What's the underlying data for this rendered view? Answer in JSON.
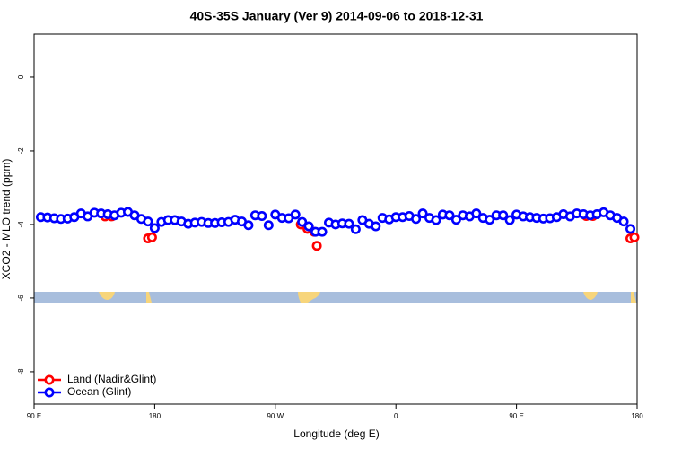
{
  "chart_data": {
    "type": "scatter",
    "title": "40S-35S January (Ver 9)   2014-09-06 to 2018-12-31",
    "x_label": "Longitude (deg E)",
    "y_label": "XCO2 - MLO trend (ppm)",
    "xlim": [
      90,
      540
    ],
    "xticks": [
      {
        "value": 90,
        "label": "90 E"
      },
      180,
      {
        "value": 270,
        "label": "90 W"
      },
      {
        "value": 360,
        "label": "0"
      },
      {
        "value": 450,
        "label": "90 E"
      },
      {
        "value": 540,
        "label": "180"
      }
    ],
    "ylim": [
      -8.88,
      1.17
    ],
    "yticks": [
      0,
      -2,
      -4,
      -6,
      -8
    ],
    "legend": "bottom-left",
    "series": [
      {
        "name": "Land (Nadir&Glint)",
        "color": "#ff0000",
        "x": [
          143,
          148,
          175,
          178,
          289,
          294,
          299,
          301,
          502,
          507,
          535,
          538
        ],
        "values": [
          -3.78,
          -3.78,
          -4.38,
          -4.35,
          -4.0,
          -4.12,
          -4.2,
          -4.58,
          -3.77,
          -3.77,
          -4.38,
          -4.35
        ]
      },
      {
        "name": "Ocean (Glint)",
        "color": "#0000ff",
        "x": [
          95,
          100,
          105,
          110,
          115,
          120,
          125,
          130,
          135,
          140,
          145,
          150,
          155,
          160,
          165,
          170,
          175,
          180,
          185,
          190,
          195,
          200,
          205,
          210,
          215,
          220,
          225,
          230,
          235,
          240,
          245,
          250,
          255,
          260,
          265,
          270,
          275,
          280,
          285,
          290,
          295,
          300,
          305,
          310,
          315,
          320,
          325,
          330,
          335,
          340,
          345,
          350,
          355,
          360,
          365,
          370,
          375,
          380,
          385,
          390,
          395,
          400,
          405,
          410,
          415,
          420,
          425,
          430,
          435,
          440,
          445,
          450,
          455,
          460,
          465,
          470,
          475,
          480,
          485,
          490,
          495,
          500,
          505,
          510,
          515,
          520,
          525,
          530,
          535
        ],
        "values": [
          -3.8,
          -3.81,
          -3.83,
          -3.85,
          -3.84,
          -3.8,
          -3.7,
          -3.78,
          -3.68,
          -3.7,
          -3.72,
          -3.75,
          -3.68,
          -3.66,
          -3.75,
          -3.85,
          -3.92,
          -4.1,
          -3.93,
          -3.88,
          -3.88,
          -3.92,
          -3.98,
          -3.95,
          -3.93,
          -3.96,
          -3.96,
          -3.94,
          -3.93,
          -3.87,
          -3.92,
          -4.02,
          -3.75,
          -3.77,
          -4.02,
          -3.73,
          -3.82,
          -3.83,
          -3.73,
          -3.93,
          -4.05,
          -4.2,
          -4.2,
          -3.95,
          -4.0,
          -3.97,
          -3.98,
          -4.13,
          -3.88,
          -3.98,
          -4.05,
          -3.82,
          -3.86,
          -3.8,
          -3.8,
          -3.77,
          -3.85,
          -3.7,
          -3.82,
          -3.88,
          -3.73,
          -3.75,
          -3.87,
          -3.75,
          -3.78,
          -3.7,
          -3.82,
          -3.87,
          -3.75,
          -3.75,
          -3.88,
          -3.73,
          -3.78,
          -3.8,
          -3.82,
          -3.84,
          -3.83,
          -3.8,
          -3.72,
          -3.78,
          -3.7,
          -3.72,
          -3.75,
          -3.72,
          -3.67,
          -3.75,
          -3.82,
          -3.92,
          -4.12
        ]
      }
    ]
  }
}
